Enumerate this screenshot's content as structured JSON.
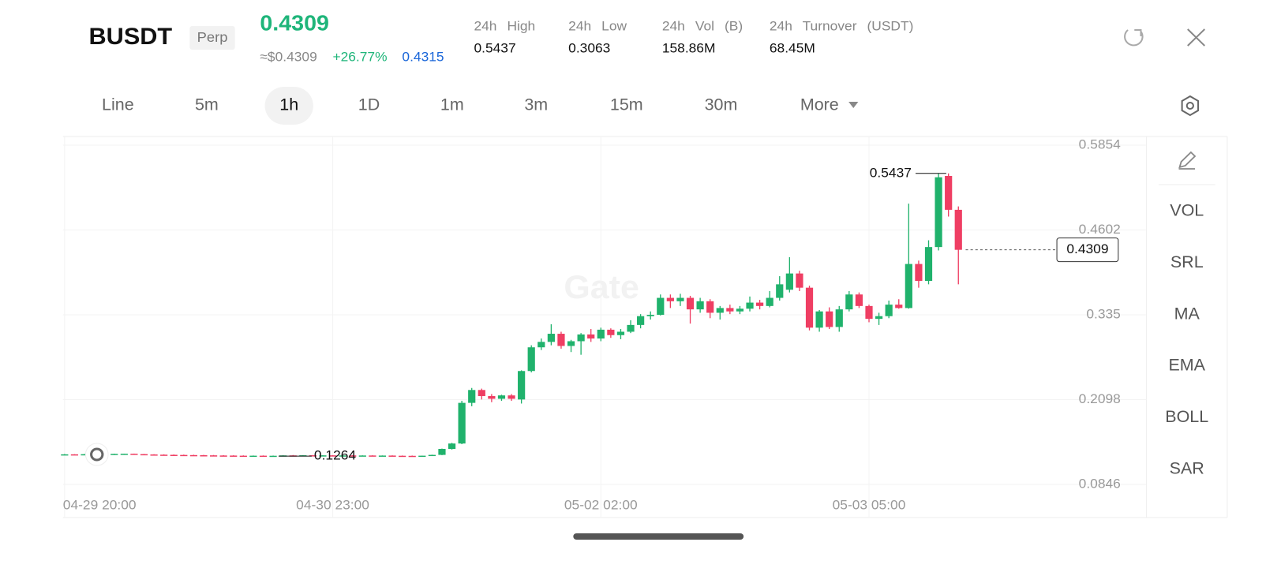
{
  "header": {
    "symbol": "BUSDT",
    "tag": "Perp",
    "price": "0.4309",
    "approx_price": "≈$0.4309",
    "change": "+26.77%",
    "mark_price": "0.4315",
    "stats": [
      {
        "label": "24h High",
        "value": "0.5437"
      },
      {
        "label": "24h Low",
        "value": "0.3063"
      },
      {
        "label": "24h Vol (B)",
        "value": "158.86M"
      },
      {
        "label": "24h Turnover (USDT)",
        "value": "68.45M"
      }
    ]
  },
  "tabs": [
    "Line",
    "5m",
    "1h",
    "1D",
    "1m",
    "3m",
    "15m",
    "30m",
    "More"
  ],
  "tools": [
    "VOL",
    "SRL",
    "MA",
    "EMA",
    "BOLL",
    "SAR"
  ],
  "chart_data": {
    "type": "candlestick",
    "watermark": "Gate",
    "up_color": "#20b26c",
    "down_color": "#ef3e63",
    "candles": [
      [
        0.1285,
        0.1295,
        0.128,
        0.129
      ],
      [
        0.129,
        0.1292,
        0.1282,
        0.1286
      ],
      [
        0.1286,
        0.1296,
        0.1284,
        0.1292
      ],
      [
        0.1292,
        0.1298,
        0.1286,
        0.1295
      ],
      [
        0.1295,
        0.1298,
        0.129,
        0.1292
      ],
      [
        0.1292,
        0.13,
        0.129,
        0.1297
      ],
      [
        0.1297,
        0.13,
        0.1292,
        0.1299
      ],
      [
        0.1299,
        0.1301,
        0.129,
        0.1293
      ],
      [
        0.1293,
        0.1296,
        0.1286,
        0.1288
      ],
      [
        0.1288,
        0.1292,
        0.1282,
        0.1285
      ],
      [
        0.1285,
        0.129,
        0.128,
        0.1283
      ],
      [
        0.1283,
        0.1288,
        0.1278,
        0.1281
      ],
      [
        0.1281,
        0.1286,
        0.1276,
        0.1279
      ],
      [
        0.1279,
        0.1284,
        0.1274,
        0.1277
      ],
      [
        0.1277,
        0.1282,
        0.1273,
        0.1275
      ],
      [
        0.1275,
        0.128,
        0.1271,
        0.1273
      ],
      [
        0.1273,
        0.1278,
        0.127,
        0.1272
      ],
      [
        0.1272,
        0.1276,
        0.1268,
        0.127
      ],
      [
        0.127,
        0.1275,
        0.1267,
        0.1268
      ],
      [
        0.1268,
        0.1273,
        0.1266,
        0.127
      ],
      [
        0.127,
        0.1274,
        0.1265,
        0.1267
      ],
      [
        0.1267,
        0.1272,
        0.1264,
        0.1269
      ],
      [
        0.1269,
        0.1276,
        0.1264,
        0.1274
      ],
      [
        0.1274,
        0.128,
        0.1266,
        0.127
      ],
      [
        0.127,
        0.1278,
        0.1268,
        0.1276
      ],
      [
        0.1276,
        0.128,
        0.127,
        0.1273
      ],
      [
        0.1273,
        0.1278,
        0.1268,
        0.1275
      ],
      [
        0.1275,
        0.1278,
        0.127,
        0.1272
      ],
      [
        0.1272,
        0.1276,
        0.1268,
        0.1274
      ],
      [
        0.1274,
        0.1277,
        0.1269,
        0.1271
      ],
      [
        0.1271,
        0.1275,
        0.1267,
        0.1273
      ],
      [
        0.1273,
        0.1276,
        0.1268,
        0.127
      ],
      [
        0.127,
        0.1274,
        0.1267,
        0.1272
      ],
      [
        0.1272,
        0.1275,
        0.1267,
        0.1269
      ],
      [
        0.1269,
        0.1273,
        0.1266,
        0.1268
      ],
      [
        0.1268,
        0.1272,
        0.1265,
        0.1267
      ],
      [
        0.1267,
        0.1271,
        0.1265,
        0.127
      ],
      [
        0.127,
        0.1285,
        0.1268,
        0.1282
      ],
      [
        0.1282,
        0.1375,
        0.1278,
        0.137
      ],
      [
        0.137,
        0.146,
        0.136,
        0.145
      ],
      [
        0.145,
        0.208,
        0.144,
        0.205
      ],
      [
        0.205,
        0.227,
        0.2,
        0.224
      ],
      [
        0.224,
        0.226,
        0.21,
        0.215
      ],
      [
        0.215,
        0.218,
        0.206,
        0.211
      ],
      [
        0.211,
        0.217,
        0.208,
        0.216
      ],
      [
        0.216,
        0.218,
        0.208,
        0.211
      ],
      [
        0.21,
        0.253,
        0.204,
        0.252
      ],
      [
        0.252,
        0.29,
        0.25,
        0.287
      ],
      [
        0.287,
        0.3,
        0.283,
        0.295
      ],
      [
        0.295,
        0.321,
        0.29,
        0.307
      ],
      [
        0.307,
        0.31,
        0.285,
        0.289
      ],
      [
        0.289,
        0.298,
        0.28,
        0.296
      ],
      [
        0.296,
        0.308,
        0.276,
        0.306
      ],
      [
        0.306,
        0.314,
        0.295,
        0.3
      ],
      [
        0.3,
        0.316,
        0.296,
        0.313
      ],
      [
        0.313,
        0.315,
        0.301,
        0.305
      ],
      [
        0.305,
        0.314,
        0.299,
        0.31
      ],
      [
        0.31,
        0.327,
        0.308,
        0.32
      ],
      [
        0.32,
        0.336,
        0.315,
        0.333
      ],
      [
        0.333,
        0.34,
        0.328,
        0.335
      ],
      [
        0.335,
        0.365,
        0.334,
        0.36
      ],
      [
        0.36,
        0.365,
        0.345,
        0.355
      ],
      [
        0.355,
        0.366,
        0.348,
        0.36
      ],
      [
        0.36,
        0.363,
        0.322,
        0.343
      ],
      [
        0.343,
        0.36,
        0.338,
        0.355
      ],
      [
        0.355,
        0.358,
        0.33,
        0.338
      ],
      [
        0.338,
        0.348,
        0.328,
        0.345
      ],
      [
        0.345,
        0.35,
        0.336,
        0.34
      ],
      [
        0.34,
        0.348,
        0.336,
        0.344
      ],
      [
        0.344,
        0.362,
        0.34,
        0.353
      ],
      [
        0.353,
        0.357,
        0.343,
        0.348
      ],
      [
        0.348,
        0.37,
        0.346,
        0.36
      ],
      [
        0.36,
        0.392,
        0.356,
        0.38
      ],
      [
        0.372,
        0.42,
        0.368,
        0.396
      ],
      [
        0.396,
        0.4,
        0.37,
        0.375
      ],
      [
        0.375,
        0.378,
        0.312,
        0.316
      ],
      [
        0.316,
        0.342,
        0.31,
        0.34
      ],
      [
        0.34,
        0.346,
        0.314,
        0.317
      ],
      [
        0.317,
        0.348,
        0.31,
        0.343
      ],
      [
        0.343,
        0.37,
        0.34,
        0.365
      ],
      [
        0.365,
        0.368,
        0.345,
        0.348
      ],
      [
        0.348,
        0.35,
        0.324,
        0.329
      ],
      [
        0.329,
        0.338,
        0.32,
        0.333
      ],
      [
        0.333,
        0.356,
        0.33,
        0.35
      ],
      [
        0.35,
        0.358,
        0.344,
        0.345
      ],
      [
        0.345,
        0.499,
        0.344,
        0.41
      ],
      [
        0.41,
        0.415,
        0.375,
        0.385
      ],
      [
        0.385,
        0.445,
        0.38,
        0.435
      ],
      [
        0.435,
        0.5437,
        0.43,
        0.538
      ],
      [
        0.54,
        0.5437,
        0.48,
        0.49
      ],
      [
        0.49,
        0.495,
        0.38,
        0.4309
      ]
    ],
    "ylim": [
      0.0846,
      0.5854
    ],
    "yticks": [
      0.5854,
      0.4602,
      0.335,
      0.2098,
      0.0846
    ],
    "xlim": [
      0,
      90
    ],
    "xticks": [
      {
        "value": 0,
        "label": "04-29 20:00"
      },
      {
        "value": 27,
        "label": "04-30 23:00"
      },
      {
        "value": 54,
        "label": "05-02 02:00"
      },
      {
        "value": 81,
        "label": "05-03 05:00"
      }
    ],
    "high_label": 0.5437,
    "low_label": 0.1264,
    "last_price": 0.4309,
    "grid": true
  }
}
